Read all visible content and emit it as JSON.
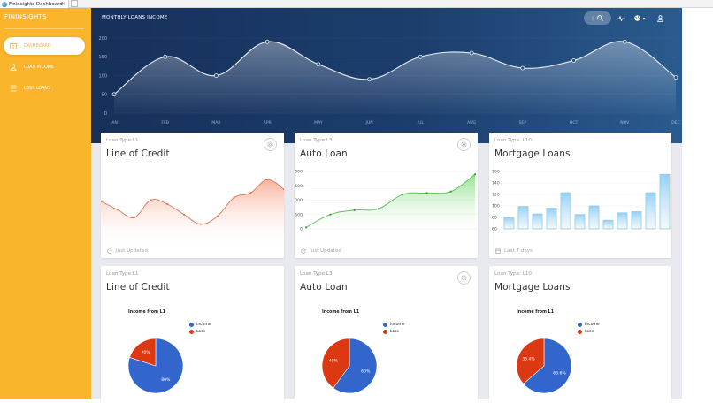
{
  "browser": {
    "tab_title": "Fininsights Dashboard",
    "tab_close": "×"
  },
  "sidebar": {
    "brand": "FININSIGHTS",
    "items": [
      {
        "label": "DASHBOARD",
        "icon": "box-icon",
        "active": true
      },
      {
        "label": "LOAN INCOME",
        "icon": "user-icon",
        "active": false
      },
      {
        "label": "LOSS LOANS",
        "icon": "list-icon",
        "active": false
      }
    ]
  },
  "header": {
    "title": "MONTHLY LOANS INCOME",
    "icons": [
      "search-icon",
      "pulse-icon",
      "globe-icon",
      "user-icon"
    ]
  },
  "colors": {
    "sidebar": "#fbb52c",
    "hero_start": "#16305a",
    "hero_end": "#2a5b8f",
    "line_of_credit": "#e0795a",
    "auto_loan": "#5cc95c",
    "mortgage": "#8cc6e6",
    "pie_income": "#3366cc",
    "pie_loss": "#dc3912"
  },
  "cards_top": [
    {
      "subtitle": "Loan Type:L1",
      "title": "Line of Credit",
      "footer": "Just Updated",
      "footer_icon": "refresh-icon",
      "has_gear": true
    },
    {
      "subtitle": "Loan Type:L3",
      "title": "Auto Loan",
      "footer": "Just Updated",
      "footer_icon": "refresh-icon",
      "has_gear": true
    },
    {
      "subtitle": "Loan Type: L10",
      "title": "Mortgage Loans",
      "footer": "Last 7 days",
      "footer_icon": "calendar-icon",
      "has_gear": false
    }
  ],
  "cards_bottom": [
    {
      "subtitle": "Loan Type:L1",
      "title": "Line of Credit",
      "pie_title": "Income from L1",
      "has_gear": false
    },
    {
      "subtitle": "Loan Type:L3",
      "title": "Auto Loan",
      "pie_title": "Income from L1",
      "has_gear": true
    },
    {
      "subtitle": "Loan Type: L10",
      "title": "Mortgage Loans",
      "pie_title": "Income from L1",
      "has_gear": false
    }
  ],
  "legend": {
    "income": "Income",
    "loss": "Loss"
  },
  "chart_data": [
    {
      "type": "area",
      "title": "MONTHLY LOANS INCOME",
      "categories": [
        "JAN",
        "FEB",
        "MAR",
        "APR",
        "MAY",
        "JUN",
        "JUL",
        "AUG",
        "SEP",
        "OCT",
        "NOV",
        "DEC"
      ],
      "values": [
        50,
        150,
        100,
        190,
        130,
        90,
        150,
        160,
        120,
        140,
        190,
        95
      ],
      "yticks": [
        0,
        50,
        100,
        150,
        200
      ],
      "ylim": [
        0,
        200
      ],
      "grid": true
    },
    {
      "type": "area",
      "title": "Line of Credit",
      "values": [
        62,
        48,
        35,
        64,
        57,
        40,
        24,
        37,
        68,
        76,
        98,
        82
      ],
      "ylim": [
        0,
        110
      ],
      "grid": false
    },
    {
      "type": "area",
      "title": "Auto Loan",
      "values": [
        50,
        500,
        650,
        700,
        1200,
        1250,
        1300,
        1900
      ],
      "yticks": [
        0,
        500,
        1000,
        1500,
        2000
      ],
      "ylim": [
        0,
        2000
      ],
      "grid": true
    },
    {
      "type": "bar",
      "title": "Mortgage Loans",
      "values": [
        80,
        99,
        86,
        96,
        123,
        85,
        100,
        75,
        88,
        90,
        123,
        155
      ],
      "yticks": [
        60,
        80,
        100,
        120,
        140,
        160
      ],
      "ylim": [
        60,
        160
      ],
      "grid": true
    },
    {
      "type": "pie",
      "title": "Income from L1",
      "categories": [
        "Income",
        "Loss"
      ],
      "values": [
        80,
        20
      ],
      "labels": [
        "80%",
        "20%"
      ]
    },
    {
      "type": "pie",
      "title": "Income from L1",
      "categories": [
        "Income",
        "Loss"
      ],
      "values": [
        60,
        40
      ],
      "labels": [
        "60%",
        "40%"
      ]
    },
    {
      "type": "pie",
      "title": "Income from L1",
      "categories": [
        "Income",
        "Loss"
      ],
      "values": [
        63.6,
        36.4
      ],
      "labels": [
        "63.6%",
        "36.4%"
      ]
    }
  ]
}
